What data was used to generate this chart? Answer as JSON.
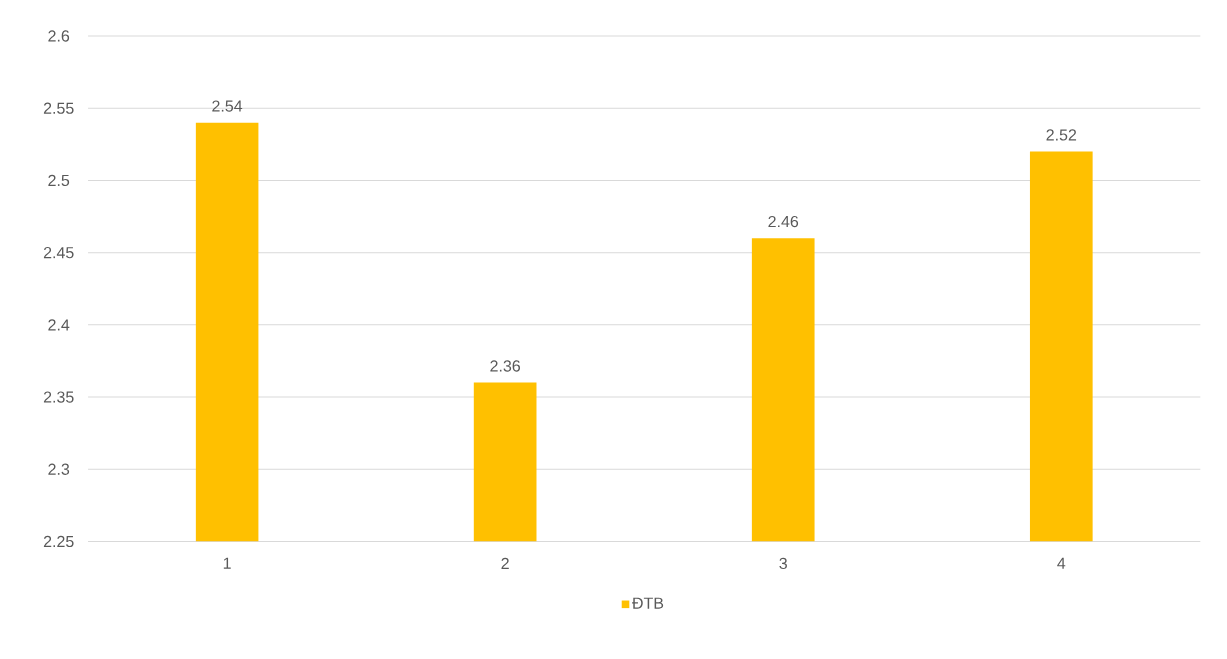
{
  "chart_data": {
    "type": "bar",
    "categories": [
      "1",
      "2",
      "3",
      "4"
    ],
    "series": [
      {
        "name": "ĐTB",
        "color": "#ffc000",
        "values": [
          2.54,
          2.36,
          2.46,
          2.52
        ]
      }
    ],
    "ylim": [
      2.25,
      2.6
    ],
    "yticks": [
      2.25,
      2.3,
      2.35,
      2.4,
      2.45,
      2.5,
      2.55,
      2.6
    ],
    "grid": "y",
    "data_labels": true,
    "legend": "bottom"
  }
}
